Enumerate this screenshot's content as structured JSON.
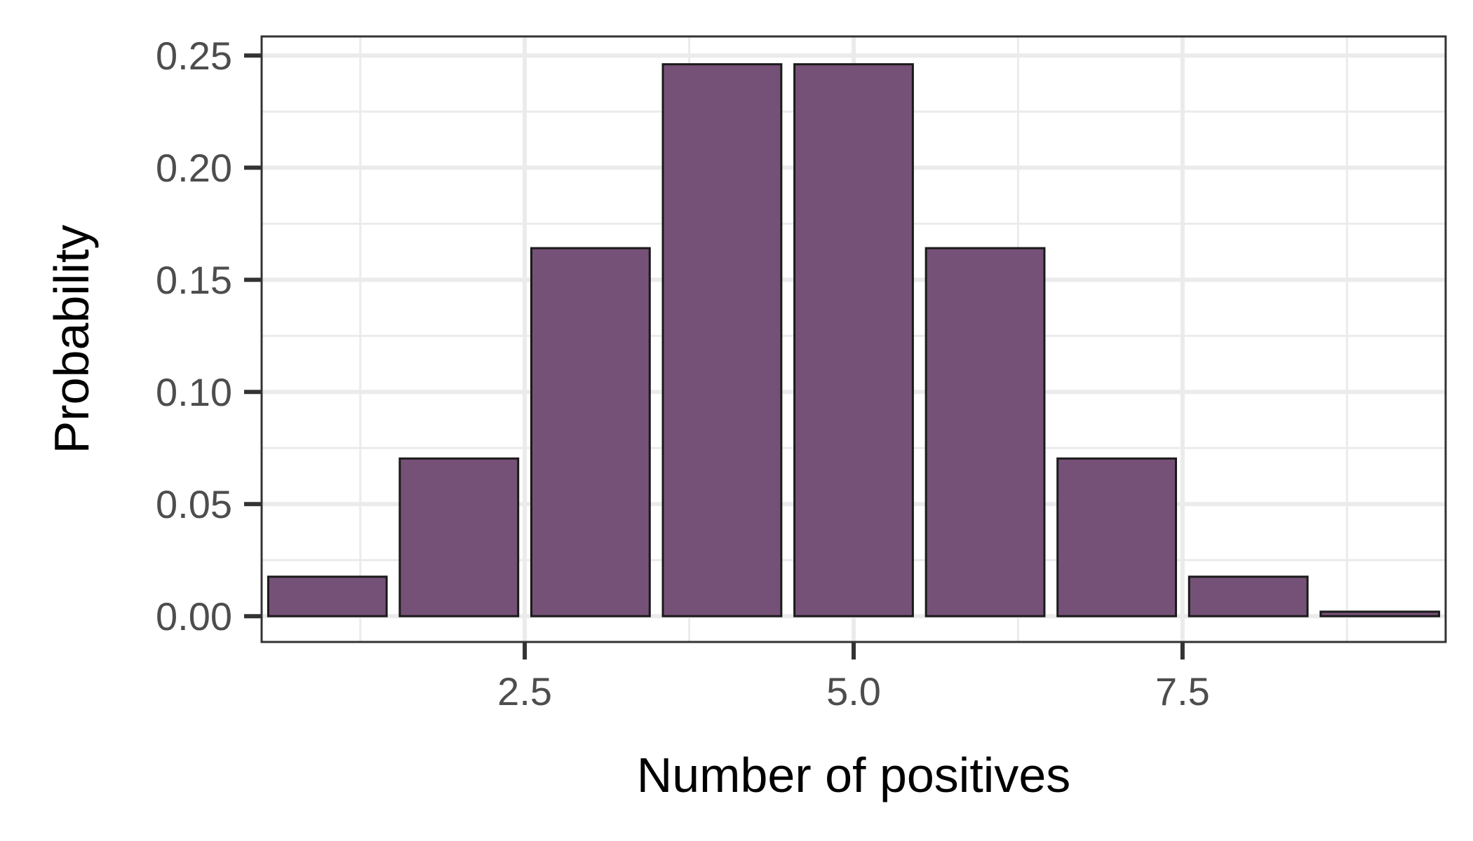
{
  "chart_data": {
    "type": "bar",
    "x": [
      1,
      2,
      3,
      4,
      5,
      6,
      7,
      8,
      9
    ],
    "values": [
      0.0176,
      0.0703,
      0.1641,
      0.2461,
      0.2461,
      0.1641,
      0.0703,
      0.0176,
      0.002
    ],
    "xlabel": "Number of positives",
    "ylabel": "Probability",
    "xlim": [
      0.5,
      9.5
    ],
    "ylim": [
      -0.0115,
      0.2585
    ],
    "x_ticks": [
      2.5,
      5.0,
      7.5
    ],
    "x_tick_labels": [
      "2.5",
      "5.0",
      "7.5"
    ],
    "y_ticks": [
      0,
      0.05,
      0.1,
      0.15,
      0.2,
      0.25
    ],
    "y_tick_labels": [
      "0.00",
      "0.05",
      "0.10",
      "0.15",
      "0.20",
      "0.25"
    ],
    "bar_width": 0.9,
    "grid": true,
    "bar_fill": "#765177",
    "bar_outline": "#1a1a1a",
    "grid_color": "#ebebeb",
    "panel_border": "#333333"
  }
}
